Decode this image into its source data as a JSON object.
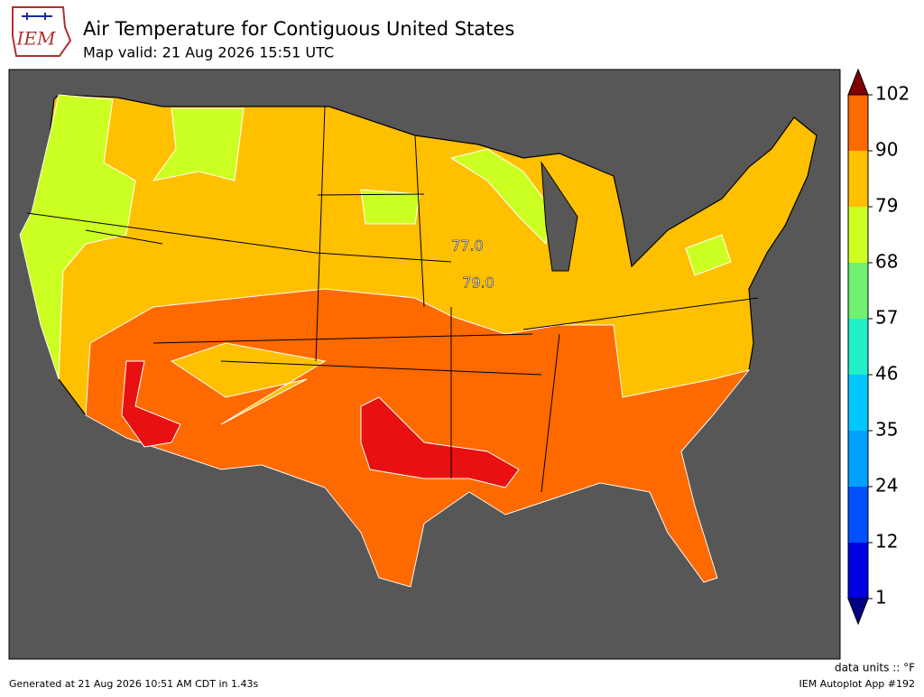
{
  "header": {
    "title": "Air Temperature for Contiguous United States",
    "subtitle": "Map valid: 21 Aug 2026 15:51 UTC",
    "logo_text": "IEM"
  },
  "map": {
    "contour_labels": [
      "77.0",
      "79.0"
    ],
    "colorbar": {
      "ticks": [
        1,
        12,
        24,
        35,
        46,
        57,
        68,
        79,
        90,
        102
      ],
      "colors": [
        "#0000e0",
        "#0050ff",
        "#00a0ff",
        "#00c8ff",
        "#20f0c8",
        "#70f070",
        "#ccff22",
        "#ffc000",
        "#ff6a00",
        "#e81010"
      ],
      "under_color": "#000080",
      "over_color": "#800000"
    },
    "units_label": "data units :: °F"
  },
  "footer": {
    "generated": "Generated at 21 Aug 2026 10:51 AM CDT in 1.43s",
    "app": "IEM Autoplot App #192"
  }
}
